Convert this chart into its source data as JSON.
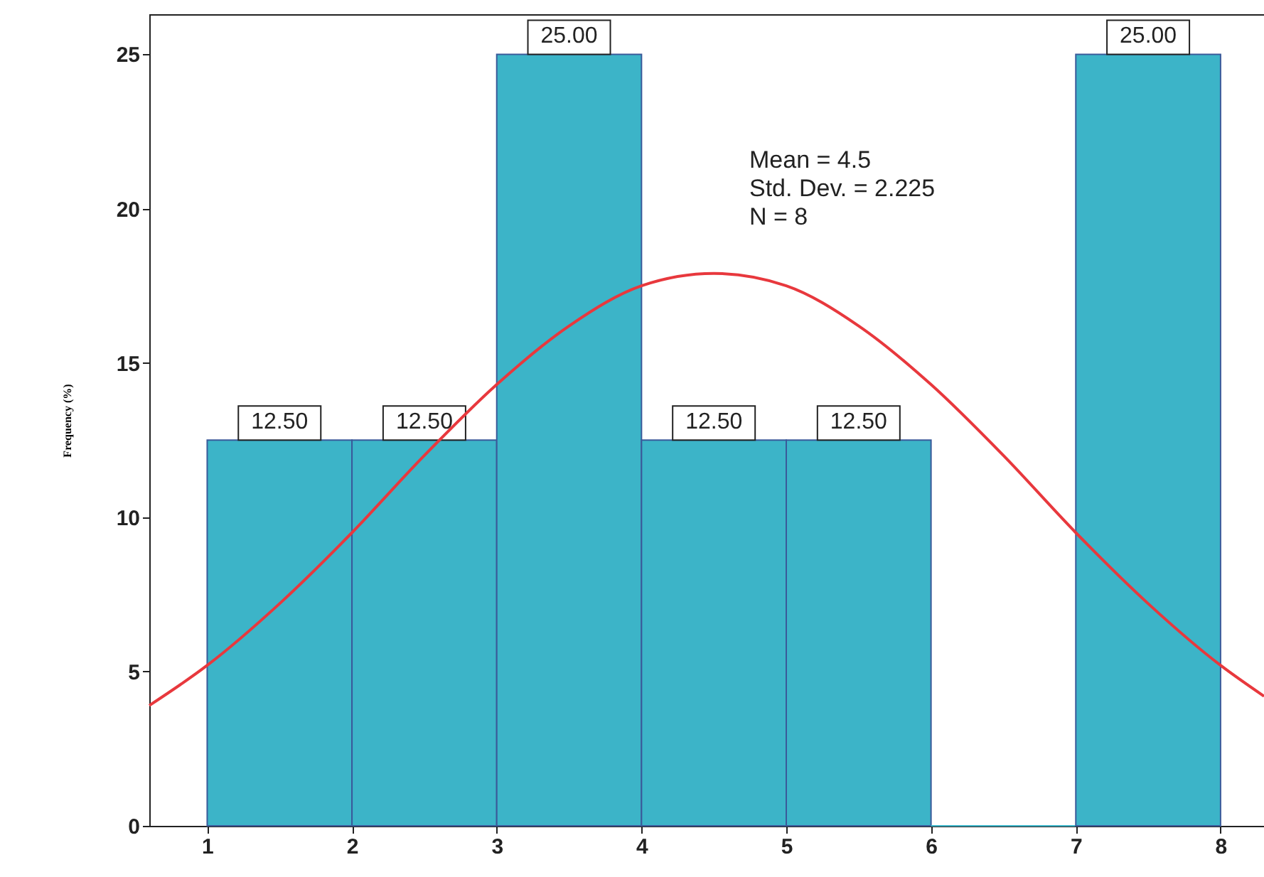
{
  "chart_data": {
    "type": "histogram",
    "ylabel": "Frequency (%)",
    "bins": [
      1,
      2,
      3,
      4,
      5,
      6,
      7,
      8
    ],
    "values": [
      12.5,
      12.5,
      25,
      12.5,
      12.5,
      0,
      25
    ],
    "value_labels": [
      "12.50",
      "12.50",
      "25.00",
      "12.50",
      "12.50",
      null,
      "25.00"
    ],
    "color": "#3cb4c8",
    "series": [
      {
        "type": "line",
        "color": "#e8383d",
        "x": [
          0.6,
          1,
          1.5,
          2,
          2.5,
          3,
          3.5,
          4,
          4.5,
          5,
          5.5,
          6,
          6.5,
          7,
          7.5,
          8,
          8.3
        ],
        "values": [
          3.9,
          5.2,
          7.2,
          9.5,
          12.0,
          14.3,
          16.2,
          17.5,
          17.9,
          17.5,
          16.2,
          14.3,
          12.0,
          9.5,
          7.2,
          5.2,
          4.2
        ]
      }
    ],
    "annotations": [
      "Mean = 4.5",
      "Std. Dev. = 2.225",
      "N = 8"
    ],
    "xlim": [
      0.6,
      8.3
    ],
    "xticks": [
      1,
      2,
      3,
      4,
      5,
      6,
      7,
      8
    ],
    "ylim": [
      0,
      26.3
    ],
    "yticks": [
      0,
      5,
      10,
      15,
      20,
      25
    ],
    "grid": false
  }
}
